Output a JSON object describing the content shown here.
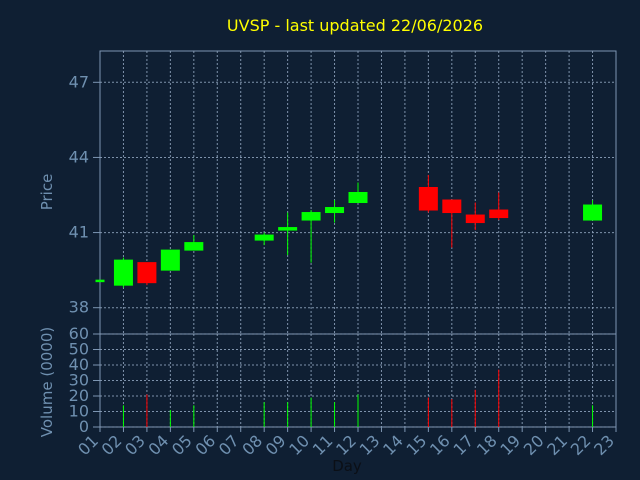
{
  "chart_data": {
    "type": "candlestick",
    "title": "UVSP - last updated 22/06/2026",
    "xlabel": "Day",
    "price_ylabel": "Price",
    "volume_ylabel": "Volume (0000)",
    "categories": [
      "01",
      "02",
      "03",
      "04",
      "05",
      "06",
      "07",
      "08",
      "09",
      "10",
      "11",
      "12",
      "13",
      "14",
      "15",
      "16",
      "17",
      "18",
      "19",
      "20",
      "21",
      "22",
      "23"
    ],
    "price_ylim": [
      36.95,
      48.25
    ],
    "price_ticks": [
      "38",
      "41",
      "44",
      "47"
    ],
    "volume_ylim": [
      0,
      60
    ],
    "volume_ticks": [
      "0",
      "10",
      "20",
      "30",
      "40",
      "50",
      "60"
    ],
    "grid": true,
    "series": [
      {
        "day": 1,
        "open": 39.1,
        "high": 39.1,
        "low": 39.1,
        "close": 39.1,
        "volume": 0
      },
      {
        "day": 2,
        "open": 38.9,
        "high": 40.0,
        "low": 38.8,
        "close": 39.9,
        "volume": 14
      },
      {
        "day": 3,
        "open": 39.8,
        "high": 39.8,
        "low": 38.9,
        "close": 39.0,
        "volume": 21
      },
      {
        "day": 4,
        "open": 39.5,
        "high": 40.3,
        "low": 39.5,
        "close": 40.3,
        "volume": 11
      },
      {
        "day": 5,
        "open": 40.3,
        "high": 40.9,
        "low": 40.3,
        "close": 40.6,
        "volume": 14
      },
      {
        "day": 8,
        "open": 40.7,
        "high": 41.0,
        "low": 40.5,
        "close": 40.9,
        "volume": 16
      },
      {
        "day": 9,
        "open": 41.1,
        "high": 41.8,
        "low": 40.1,
        "close": 41.2,
        "volume": 16
      },
      {
        "day": 10,
        "open": 41.5,
        "high": 41.9,
        "low": 39.8,
        "close": 41.8,
        "volume": 19
      },
      {
        "day": 11,
        "open": 41.8,
        "high": 42.3,
        "low": 41.4,
        "close": 42.0,
        "volume": 16
      },
      {
        "day": 12,
        "open": 42.2,
        "high": 43.0,
        "low": 42.2,
        "close": 42.6,
        "volume": 21
      },
      {
        "day": 15,
        "open": 42.8,
        "high": 43.3,
        "low": 41.8,
        "close": 41.9,
        "volume": 19
      },
      {
        "day": 16,
        "open": 42.3,
        "high": 42.3,
        "low": 40.4,
        "close": 41.8,
        "volume": 18
      },
      {
        "day": 17,
        "open": 41.7,
        "high": 42.2,
        "low": 41.1,
        "close": 41.4,
        "volume": 24
      },
      {
        "day": 18,
        "open": 41.9,
        "high": 42.6,
        "low": 41.5,
        "close": 41.6,
        "volume": 37
      },
      {
        "day": 22,
        "open": 41.5,
        "high": 42.3,
        "low": 41.5,
        "close": 42.1,
        "volume": 14
      }
    ],
    "colors": {
      "background": "#0f1f33",
      "up": "#00ff00",
      "down": "#ff0000",
      "axis": "#7d96b3",
      "grid": "#8b9fb8",
      "title": "#ffff00",
      "axis_text": "#6f90b0",
      "x_title": "#0b0f16"
    }
  }
}
